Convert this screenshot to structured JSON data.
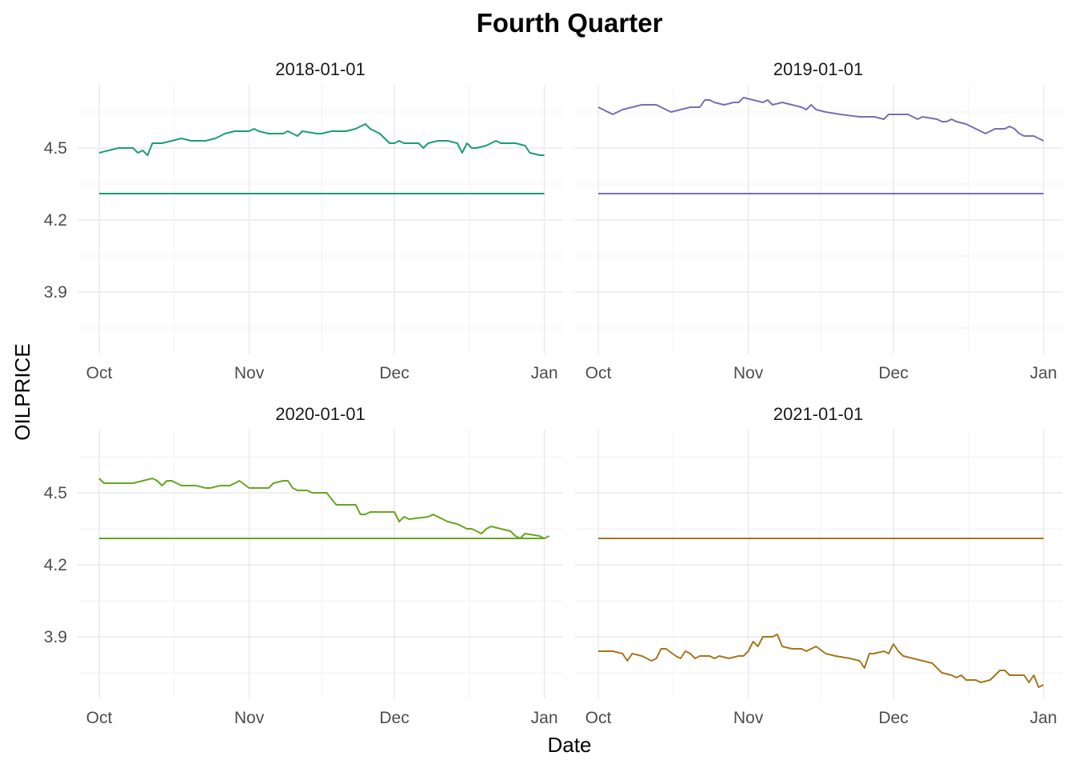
{
  "chart_data": {
    "type": "line",
    "title": "Fourth Quarter",
    "xlabel": "Date",
    "ylabel": "OILPRICE",
    "x_ticks": [
      "Oct",
      "Nov",
      "Dec",
      "Jan"
    ],
    "y_ticks": [
      "3.9",
      "4.2",
      "4.5"
    ],
    "ylim": [
      3.67,
      4.78
    ],
    "xlim": [
      "2020-09-29",
      "2021-01-02"
    ],
    "grid": true,
    "legend": "none",
    "x_note": "x values are day-of-year in Q4: 0 = Oct 1, 31 = Nov 1, 61 = Dec 1, 92 = Jan 1",
    "panels": [
      {
        "label": "2018-01-01",
        "color": "#1B9E77",
        "reference": 4.31,
        "points": [
          [
            0,
            4.48
          ],
          [
            2,
            4.49
          ],
          [
            4,
            4.5
          ],
          [
            7,
            4.5
          ],
          [
            8,
            4.48
          ],
          [
            9,
            4.49
          ],
          [
            10,
            4.47
          ],
          [
            11,
            4.52
          ],
          [
            13,
            4.52
          ],
          [
            15,
            4.53
          ],
          [
            17,
            4.54
          ],
          [
            19,
            4.53
          ],
          [
            22,
            4.53
          ],
          [
            24,
            4.54
          ],
          [
            26,
            4.56
          ],
          [
            28,
            4.57
          ],
          [
            31,
            4.57
          ],
          [
            32,
            4.58
          ],
          [
            33,
            4.57
          ],
          [
            35,
            4.56
          ],
          [
            38,
            4.56
          ],
          [
            39,
            4.57
          ],
          [
            40,
            4.56
          ],
          [
            41,
            4.55
          ],
          [
            42,
            4.57
          ],
          [
            45,
            4.56
          ],
          [
            46,
            4.56
          ],
          [
            48,
            4.57
          ],
          [
            51,
            4.57
          ],
          [
            53,
            4.58
          ],
          [
            54,
            4.59
          ],
          [
            55,
            4.6
          ],
          [
            56,
            4.58
          ],
          [
            58,
            4.56
          ],
          [
            60,
            4.52
          ],
          [
            61,
            4.52
          ],
          [
            62,
            4.53
          ],
          [
            63,
            4.52
          ],
          [
            64,
            4.52
          ],
          [
            66,
            4.52
          ],
          [
            67,
            4.5
          ],
          [
            68,
            4.52
          ],
          [
            70,
            4.53
          ],
          [
            72,
            4.53
          ],
          [
            74,
            4.52
          ],
          [
            75,
            4.48
          ],
          [
            76,
            4.52
          ],
          [
            77,
            4.5
          ],
          [
            78,
            4.5
          ],
          [
            80,
            4.51
          ],
          [
            82,
            4.53
          ],
          [
            83,
            4.52
          ],
          [
            86,
            4.52
          ],
          [
            88,
            4.51
          ],
          [
            89,
            4.48
          ],
          [
            91,
            4.47
          ],
          [
            92,
            4.47
          ]
        ]
      },
      {
        "label": "2019-01-01",
        "color": "#7570B3",
        "reference": 4.31,
        "points": [
          [
            0,
            4.67
          ],
          [
            2,
            4.65
          ],
          [
            3,
            4.64
          ],
          [
            5,
            4.66
          ],
          [
            7,
            4.67
          ],
          [
            9,
            4.68
          ],
          [
            12,
            4.68
          ],
          [
            13,
            4.67
          ],
          [
            14,
            4.66
          ],
          [
            15,
            4.65
          ],
          [
            17,
            4.66
          ],
          [
            19,
            4.67
          ],
          [
            21,
            4.67
          ],
          [
            22,
            4.7
          ],
          [
            23,
            4.7
          ],
          [
            24,
            4.69
          ],
          [
            26,
            4.68
          ],
          [
            28,
            4.69
          ],
          [
            29,
            4.69
          ],
          [
            30,
            4.71
          ],
          [
            32,
            4.7
          ],
          [
            34,
            4.69
          ],
          [
            35,
            4.7
          ],
          [
            36,
            4.68
          ],
          [
            38,
            4.69
          ],
          [
            40,
            4.68
          ],
          [
            42,
            4.67
          ],
          [
            43,
            4.66
          ],
          [
            44,
            4.68
          ],
          [
            45,
            4.66
          ],
          [
            47,
            4.65
          ],
          [
            50,
            4.64
          ],
          [
            54,
            4.63
          ],
          [
            57,
            4.63
          ],
          [
            59,
            4.62
          ],
          [
            60,
            4.64
          ],
          [
            62,
            4.64
          ],
          [
            64,
            4.64
          ],
          [
            65,
            4.63
          ],
          [
            66,
            4.62
          ],
          [
            67,
            4.63
          ],
          [
            70,
            4.62
          ],
          [
            71,
            4.61
          ],
          [
            72,
            4.61
          ],
          [
            73,
            4.62
          ],
          [
            74,
            4.61
          ],
          [
            76,
            4.6
          ],
          [
            77,
            4.59
          ],
          [
            79,
            4.57
          ],
          [
            80,
            4.56
          ],
          [
            82,
            4.58
          ],
          [
            84,
            4.58
          ],
          [
            85,
            4.59
          ],
          [
            86,
            4.58
          ],
          [
            87,
            4.56
          ],
          [
            88,
            4.55
          ],
          [
            90,
            4.55
          ],
          [
            91,
            4.54
          ],
          [
            92,
            4.53
          ]
        ]
      },
      {
        "label": "2020-01-01",
        "color": "#66A61E",
        "reference": 4.31,
        "points": [
          [
            0,
            4.56
          ],
          [
            1,
            4.54
          ],
          [
            3,
            4.54
          ],
          [
            5,
            4.54
          ],
          [
            7,
            4.54
          ],
          [
            9,
            4.55
          ],
          [
            11,
            4.56
          ],
          [
            12,
            4.55
          ],
          [
            13,
            4.53
          ],
          [
            14,
            4.55
          ],
          [
            15,
            4.55
          ],
          [
            17,
            4.53
          ],
          [
            20,
            4.53
          ],
          [
            22,
            4.52
          ],
          [
            23,
            4.52
          ],
          [
            25,
            4.53
          ],
          [
            27,
            4.53
          ],
          [
            29,
            4.55
          ],
          [
            31,
            4.52
          ],
          [
            33,
            4.52
          ],
          [
            35,
            4.52
          ],
          [
            36,
            4.54
          ],
          [
            38,
            4.55
          ],
          [
            39,
            4.55
          ],
          [
            40,
            4.52
          ],
          [
            41,
            4.51
          ],
          [
            43,
            4.51
          ],
          [
            44,
            4.5
          ],
          [
            47,
            4.5
          ],
          [
            49,
            4.45
          ],
          [
            53,
            4.45
          ],
          [
            54,
            4.41
          ],
          [
            55,
            4.41
          ],
          [
            56,
            4.42
          ],
          [
            61,
            4.42
          ],
          [
            62,
            4.38
          ],
          [
            63,
            4.4
          ],
          [
            64,
            4.39
          ],
          [
            68,
            4.4
          ],
          [
            69,
            4.41
          ],
          [
            70,
            4.4
          ],
          [
            72,
            4.38
          ],
          [
            74,
            4.37
          ],
          [
            75,
            4.36
          ],
          [
            76,
            4.35
          ],
          [
            77,
            4.35
          ],
          [
            78,
            4.34
          ],
          [
            79,
            4.33
          ],
          [
            80,
            4.35
          ],
          [
            81,
            4.36
          ],
          [
            83,
            4.35
          ],
          [
            85,
            4.34
          ],
          [
            86,
            4.32
          ],
          [
            87,
            4.31
          ],
          [
            88,
            4.33
          ],
          [
            91,
            4.32
          ],
          [
            92,
            4.31
          ],
          [
            93,
            4.32
          ]
        ]
      },
      {
        "label": "2021-01-01",
        "color": "#A6761D",
        "reference": 4.31,
        "points": [
          [
            0,
            3.84
          ],
          [
            2,
            3.84
          ],
          [
            3,
            3.84
          ],
          [
            5,
            3.83
          ],
          [
            6,
            3.8
          ],
          [
            7,
            3.83
          ],
          [
            9,
            3.82
          ],
          [
            11,
            3.8
          ],
          [
            12,
            3.81
          ],
          [
            13,
            3.85
          ],
          [
            14,
            3.85
          ],
          [
            16,
            3.82
          ],
          [
            17,
            3.81
          ],
          [
            18,
            3.84
          ],
          [
            19,
            3.83
          ],
          [
            20,
            3.81
          ],
          [
            21,
            3.82
          ],
          [
            23,
            3.82
          ],
          [
            24,
            3.81
          ],
          [
            25,
            3.82
          ],
          [
            27,
            3.81
          ],
          [
            29,
            3.82
          ],
          [
            30,
            3.82
          ],
          [
            31,
            3.84
          ],
          [
            32,
            3.88
          ],
          [
            33,
            3.86
          ],
          [
            34,
            3.9
          ],
          [
            36,
            3.9
          ],
          [
            37,
            3.91
          ],
          [
            38,
            3.86
          ],
          [
            40,
            3.85
          ],
          [
            42,
            3.85
          ],
          [
            43,
            3.84
          ],
          [
            45,
            3.86
          ],
          [
            47,
            3.83
          ],
          [
            49,
            3.82
          ],
          [
            52,
            3.81
          ],
          [
            54,
            3.8
          ],
          [
            55,
            3.77
          ],
          [
            56,
            3.83
          ],
          [
            57,
            3.83
          ],
          [
            59,
            3.84
          ],
          [
            60,
            3.83
          ],
          [
            61,
            3.87
          ],
          [
            62,
            3.84
          ],
          [
            63,
            3.82
          ],
          [
            65,
            3.81
          ],
          [
            67,
            3.8
          ],
          [
            69,
            3.79
          ],
          [
            70,
            3.77
          ],
          [
            71,
            3.75
          ],
          [
            73,
            3.74
          ],
          [
            74,
            3.73
          ],
          [
            75,
            3.74
          ],
          [
            76,
            3.72
          ],
          [
            78,
            3.72
          ],
          [
            79,
            3.71
          ],
          [
            81,
            3.72
          ],
          [
            82,
            3.74
          ],
          [
            83,
            3.76
          ],
          [
            84,
            3.76
          ],
          [
            85,
            3.74
          ],
          [
            88,
            3.74
          ],
          [
            89,
            3.71
          ],
          [
            90,
            3.74
          ],
          [
            91,
            3.69
          ],
          [
            92,
            3.7
          ]
        ]
      }
    ]
  }
}
